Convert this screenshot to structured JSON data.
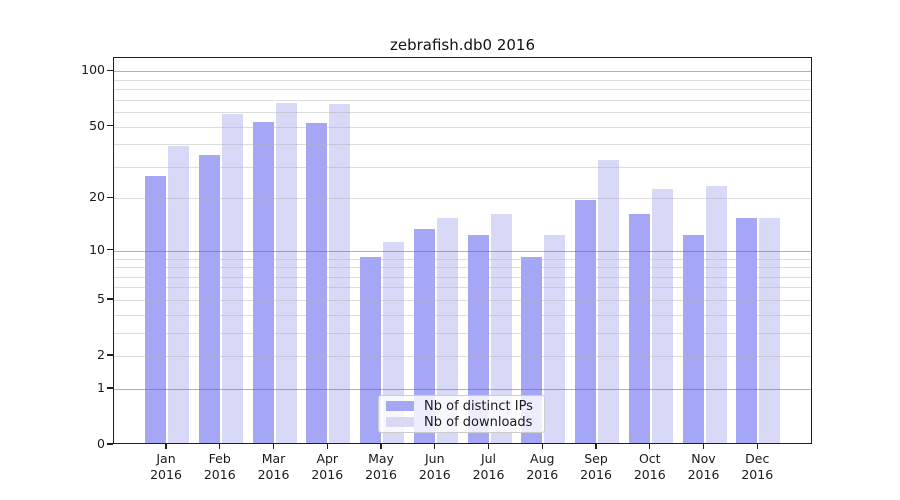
{
  "chart_data": {
    "type": "bar",
    "title": "zebrafish.db0 2016",
    "categories": [
      "Jan",
      "Feb",
      "Mar",
      "Apr",
      "May",
      "Jun",
      "Jul",
      "Aug",
      "Sep",
      "Oct",
      "Nov",
      "Dec"
    ],
    "x_year_label": "2016",
    "series": [
      {
        "name": "Nb of distinct IPs",
        "color": "#a6a6f7",
        "values": [
          26,
          34,
          52,
          51,
          9,
          13,
          12,
          9,
          19,
          16,
          12,
          15
        ]
      },
      {
        "name": "Nb of downloads",
        "color": "#d8d8f7",
        "values": [
          38,
          57,
          66,
          65,
          11,
          15,
          16,
          12,
          32,
          22,
          23,
          15
        ]
      }
    ],
    "yticks": [
      0,
      1,
      2,
      5,
      10,
      20,
      50,
      100
    ],
    "major_gridlines": [
      1,
      10,
      100
    ],
    "minor_gridlines": [
      2,
      3,
      4,
      5,
      6,
      7,
      8,
      9,
      20,
      30,
      40,
      50,
      60,
      70,
      80,
      90
    ],
    "ylim": [
      0,
      118
    ],
    "scale": "log1p",
    "grid": true,
    "legend_position": "lower-center"
  },
  "colors": {
    "background": "#ffffff",
    "bar_distinct_ips": "#a6a6f7",
    "bar_downloads": "#d8d8f7",
    "major_grid": "#b0b0b0",
    "minor_grid": "#dddddd",
    "spine": "#1f1f1f",
    "legend_border": "#cccccc"
  }
}
